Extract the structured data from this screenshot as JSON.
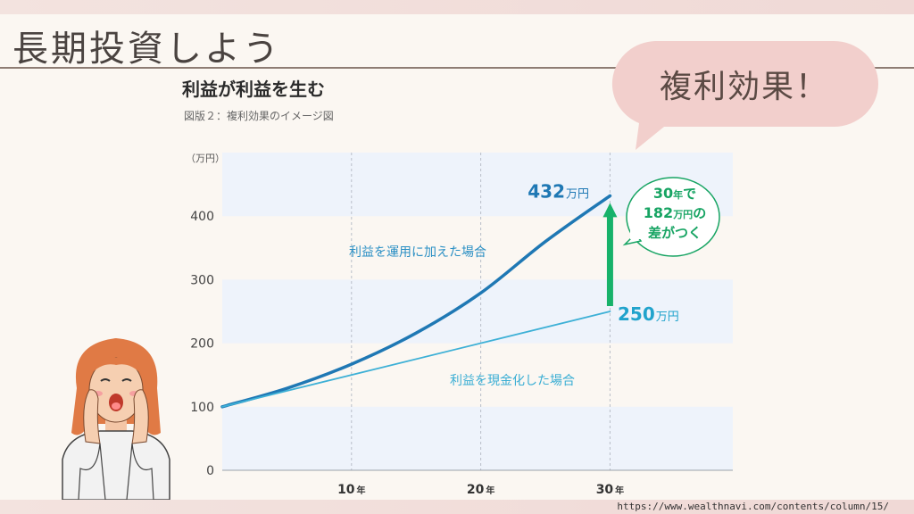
{
  "slide": {
    "title": "長期投資しよう",
    "bubble_text": "複利効果！",
    "source_url": "https://www.wealthnavi.com/contents/column/15/"
  },
  "chart_data": {
    "type": "line",
    "title": "利益が利益を生む",
    "subtitle": "図版２：複利効果のイメージ図",
    "ylabel": "（万円）",
    "x_ticks": [
      {
        "value": 10,
        "num": "10",
        "unit": "年"
      },
      {
        "value": 20,
        "num": "20",
        "unit": "年"
      },
      {
        "value": 30,
        "num": "30",
        "unit": "年"
      }
    ],
    "y_ticks": [
      0,
      100,
      200,
      300,
      400
    ],
    "xlim": [
      0,
      39.5
    ],
    "ylim": [
      0,
      500
    ],
    "series": [
      {
        "name": "利益を運用に加えた場合",
        "color": "#1f78b4",
        "x": [
          0,
          5,
          10,
          15,
          20,
          25,
          30
        ],
        "y": [
          100,
          129,
          167,
          216,
          279,
          360,
          432
        ]
      },
      {
        "name": "利益を現金化した場合",
        "color": "#3db0d6",
        "x": [
          0,
          30
        ],
        "y": [
          100,
          250
        ]
      }
    ],
    "end_labels": [
      {
        "num": "432",
        "unit": "万円",
        "color": "#1f78b4"
      },
      {
        "num": "250",
        "unit": "万円",
        "color": "#21a3cc"
      }
    ],
    "arrow_color": "#17b26a",
    "callout": {
      "line1_num": "30",
      "line1_unit": "年",
      "line1_tail": "で",
      "line2_num": "182",
      "line2_unit": "万円",
      "line2_tail": "の",
      "line3": "差がつく",
      "color": "#17a463"
    },
    "band_color": "#eef3fb",
    "grid": "vertical dashed"
  }
}
